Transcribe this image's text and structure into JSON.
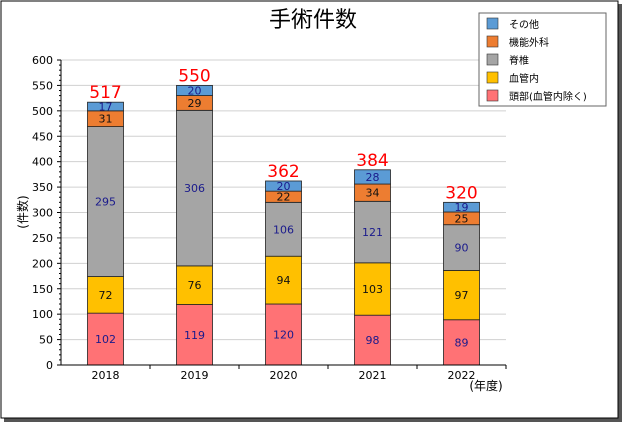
{
  "chart_data": {
    "type": "bar",
    "stacked": true,
    "title": "手術件数",
    "ylabel": "(件数)",
    "xlabel": "(年度)",
    "categories": [
      "2018",
      "2019",
      "2020",
      "2021",
      "2022"
    ],
    "ylim": [
      0,
      600
    ],
    "yticks": [
      0,
      50,
      100,
      150,
      200,
      250,
      300,
      350,
      400,
      450,
      500,
      550,
      600
    ],
    "grid": true,
    "legend_position": "top-right",
    "series": [
      {
        "name": "頭部(血管内除く)",
        "color": "#ff7275",
        "label_color": "#1a1a8c",
        "values": [
          102,
          119,
          120,
          98,
          89
        ]
      },
      {
        "name": "血管内",
        "color": "#ffc000",
        "label_color": "#111111",
        "values": [
          72,
          76,
          94,
          103,
          97
        ]
      },
      {
        "name": "脊椎",
        "color": "#a5a5a5",
        "label_color": "#1a1a8c",
        "values": [
          295,
          306,
          106,
          121,
          90
        ]
      },
      {
        "name": "機能外科",
        "color": "#ed7d31",
        "label_color": "#111111",
        "values": [
          31,
          29,
          22,
          34,
          25
        ]
      },
      {
        "name": "その他",
        "color": "#5b9bd5",
        "label_color": "#1a1a8c",
        "values": [
          17,
          20,
          20,
          28,
          19
        ]
      }
    ],
    "totals": [
      517,
      550,
      362,
      384,
      320
    ],
    "total_color": "#ff0000"
  }
}
